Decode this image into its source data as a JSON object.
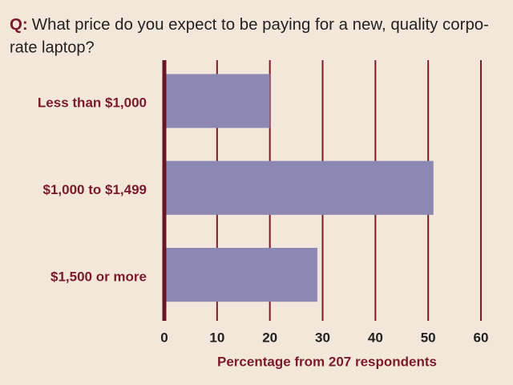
{
  "chart_data": {
    "type": "hbar",
    "title_label": "Q:",
    "title": [
      "What price do you expect to be paying for a new, quality corpo-",
      "rate laptop?"
    ],
    "categories": [
      "Less than $1,000",
      "$1,000 to $1,499",
      "$1,500 or more"
    ],
    "values": [
      20,
      51,
      29
    ],
    "color": "#8b88b3",
    "xlim": [
      0,
      60
    ],
    "xticks": [
      0,
      10,
      20,
      30,
      40,
      50,
      60
    ],
    "xlabel": "Percentage from 207 respondents",
    "grid": true
  }
}
